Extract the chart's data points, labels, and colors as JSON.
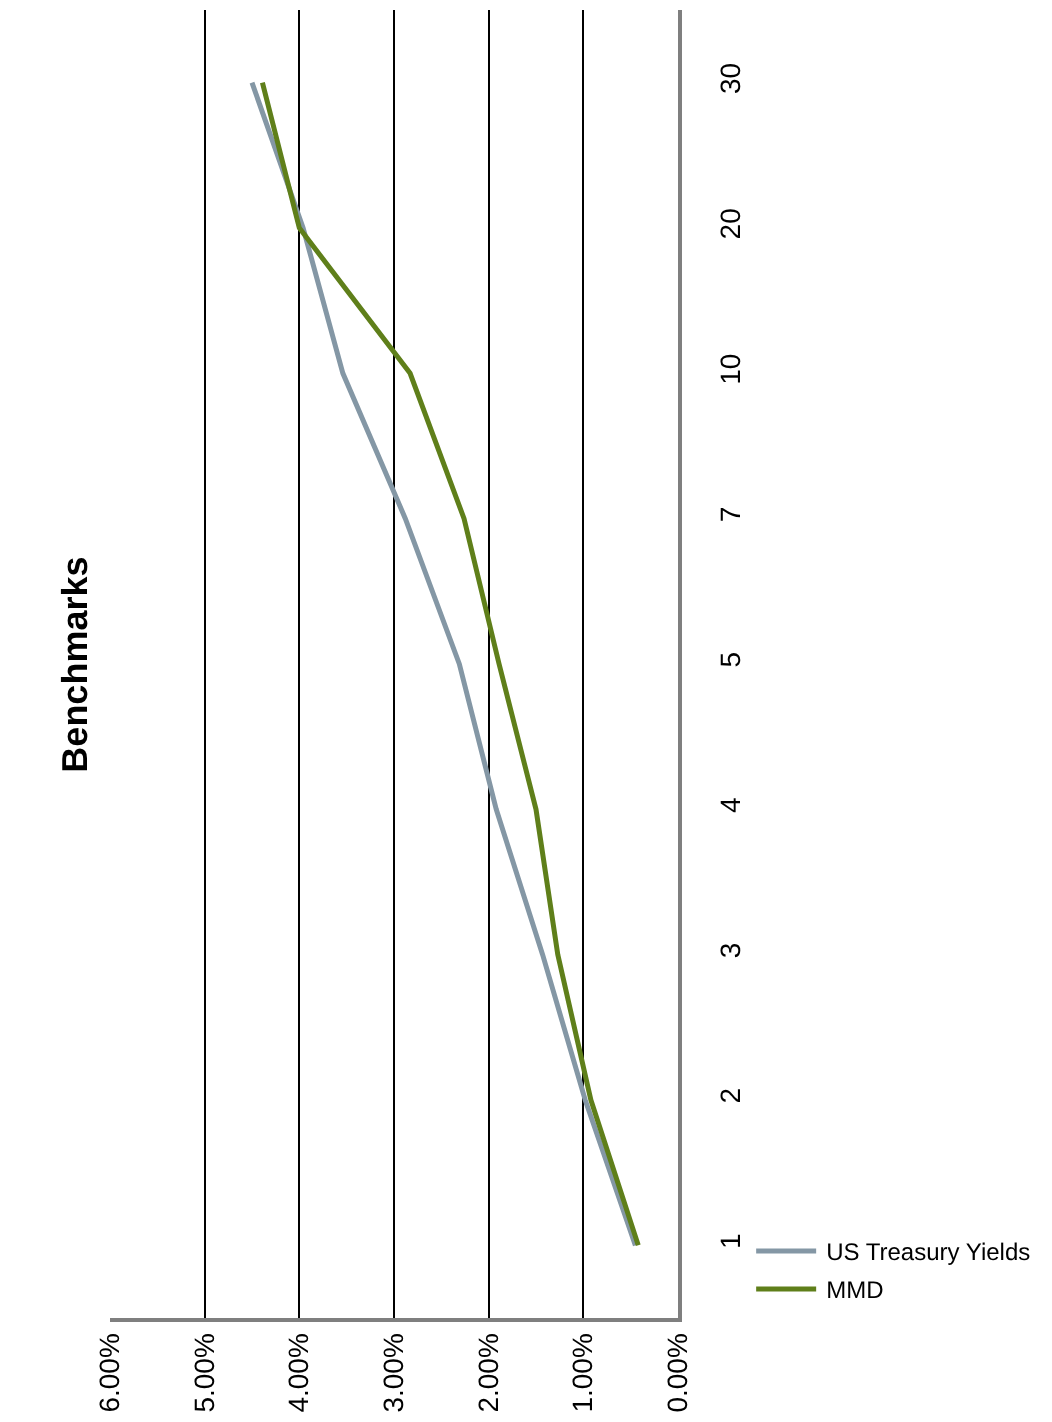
{
  "chart_data": {
    "type": "line",
    "title": "Benchmarks",
    "orientation": "horizontal",
    "categories": [
      "30",
      "20",
      "10",
      "7",
      "5",
      "4",
      "3",
      "2",
      "1"
    ],
    "series": [
      {
        "name": "US Treasury Yields",
        "color": "#8497a5",
        "values": [
          4.5,
          3.96,
          3.54,
          2.88,
          2.31,
          1.92,
          1.43,
          0.98,
          0.45
        ]
      },
      {
        "name": "MMD",
        "color": "#5f7f1a",
        "values": [
          4.39,
          4.0,
          2.83,
          2.26,
          1.89,
          1.5,
          1.27,
          0.92,
          0.42
        ]
      }
    ],
    "xlim": [
      6,
      0
    ],
    "xticks": [
      {
        "value": 0,
        "label": "0.00%"
      },
      {
        "value": 1,
        "label": "1.00%"
      },
      {
        "value": 2,
        "label": "2.00%"
      },
      {
        "value": 3,
        "label": "3.00%"
      },
      {
        "value": 4,
        "label": "4.00%"
      },
      {
        "value": 5,
        "label": "5.00%"
      },
      {
        "value": 6,
        "label": "6.00%"
      }
    ],
    "grid": "x",
    "legend": "right",
    "marker": "none",
    "line_style": "solid"
  }
}
